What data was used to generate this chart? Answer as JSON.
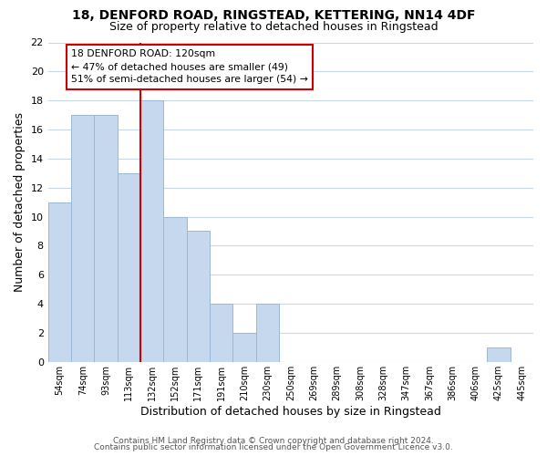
{
  "title": "18, DENFORD ROAD, RINGSTEAD, KETTERING, NN14 4DF",
  "subtitle": "Size of property relative to detached houses in Ringstead",
  "xlabel": "Distribution of detached houses by size in Ringstead",
  "ylabel": "Number of detached properties",
  "bin_labels": [
    "54sqm",
    "74sqm",
    "93sqm",
    "113sqm",
    "132sqm",
    "152sqm",
    "171sqm",
    "191sqm",
    "210sqm",
    "230sqm",
    "250sqm",
    "269sqm",
    "289sqm",
    "308sqm",
    "328sqm",
    "347sqm",
    "367sqm",
    "386sqm",
    "406sqm",
    "425sqm",
    "445sqm"
  ],
  "bar_values": [
    11,
    17,
    17,
    13,
    18,
    10,
    9,
    4,
    2,
    4,
    0,
    0,
    0,
    0,
    0,
    0,
    0,
    0,
    0,
    1,
    0
  ],
  "bar_color": "#c5d8ed",
  "bar_edge_color": "#9ab8d4",
  "vline_x_index": 3.5,
  "vline_color": "#cc0000",
  "annotation_title": "18 DENFORD ROAD: 120sqm",
  "annotation_line1": "← 47% of detached houses are smaller (49)",
  "annotation_line2": "51% of semi-detached houses are larger (54) →",
  "annotation_box_color": "#ffffff",
  "annotation_box_edge": "#cc0000",
  "ylim": [
    0,
    22
  ],
  "yticks": [
    0,
    2,
    4,
    6,
    8,
    10,
    12,
    14,
    16,
    18,
    20,
    22
  ],
  "footer1": "Contains HM Land Registry data © Crown copyright and database right 2024.",
  "footer2": "Contains public sector information licensed under the Open Government Licence v3.0.",
  "background_color": "#ffffff",
  "grid_color": "#c8d8e8"
}
